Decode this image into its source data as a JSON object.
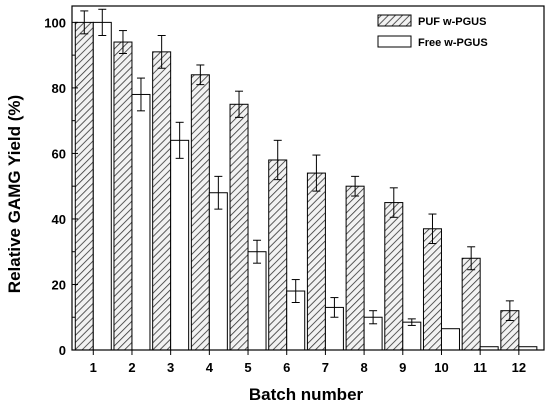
{
  "chart_data": {
    "type": "bar",
    "xlabel": "Batch number",
    "ylabel": "Relative GAMG Yield (%)",
    "ylim": [
      0,
      105
    ],
    "yticks": [
      0,
      20,
      40,
      60,
      80,
      100
    ],
    "categories": [
      "1",
      "2",
      "3",
      "4",
      "5",
      "6",
      "7",
      "8",
      "9",
      "10",
      "11",
      "12"
    ],
    "series": [
      {
        "name": "PUF w-PGUS",
        "fill": "hatched",
        "values": [
          100,
          94,
          91,
          84,
          75,
          58,
          54,
          50,
          45,
          37,
          28,
          12
        ],
        "errors": [
          3.5,
          3.5,
          5,
          3,
          4,
          6,
          5.5,
          3,
          4.5,
          4.5,
          3.5,
          3
        ]
      },
      {
        "name": "Free w-PGUS",
        "fill": "white",
        "values": [
          100,
          78,
          64,
          48,
          30,
          18,
          13,
          10,
          8.5,
          6.5,
          1,
          1
        ],
        "errors": [
          4,
          5,
          5.5,
          5,
          3.5,
          3.5,
          3,
          2,
          1,
          0,
          0,
          0
        ]
      }
    ],
    "legend_position": "top-right",
    "grid": false,
    "colors": {
      "axis": "#000000",
      "bar_stroke": "#000000",
      "hatch": "#333333"
    }
  }
}
